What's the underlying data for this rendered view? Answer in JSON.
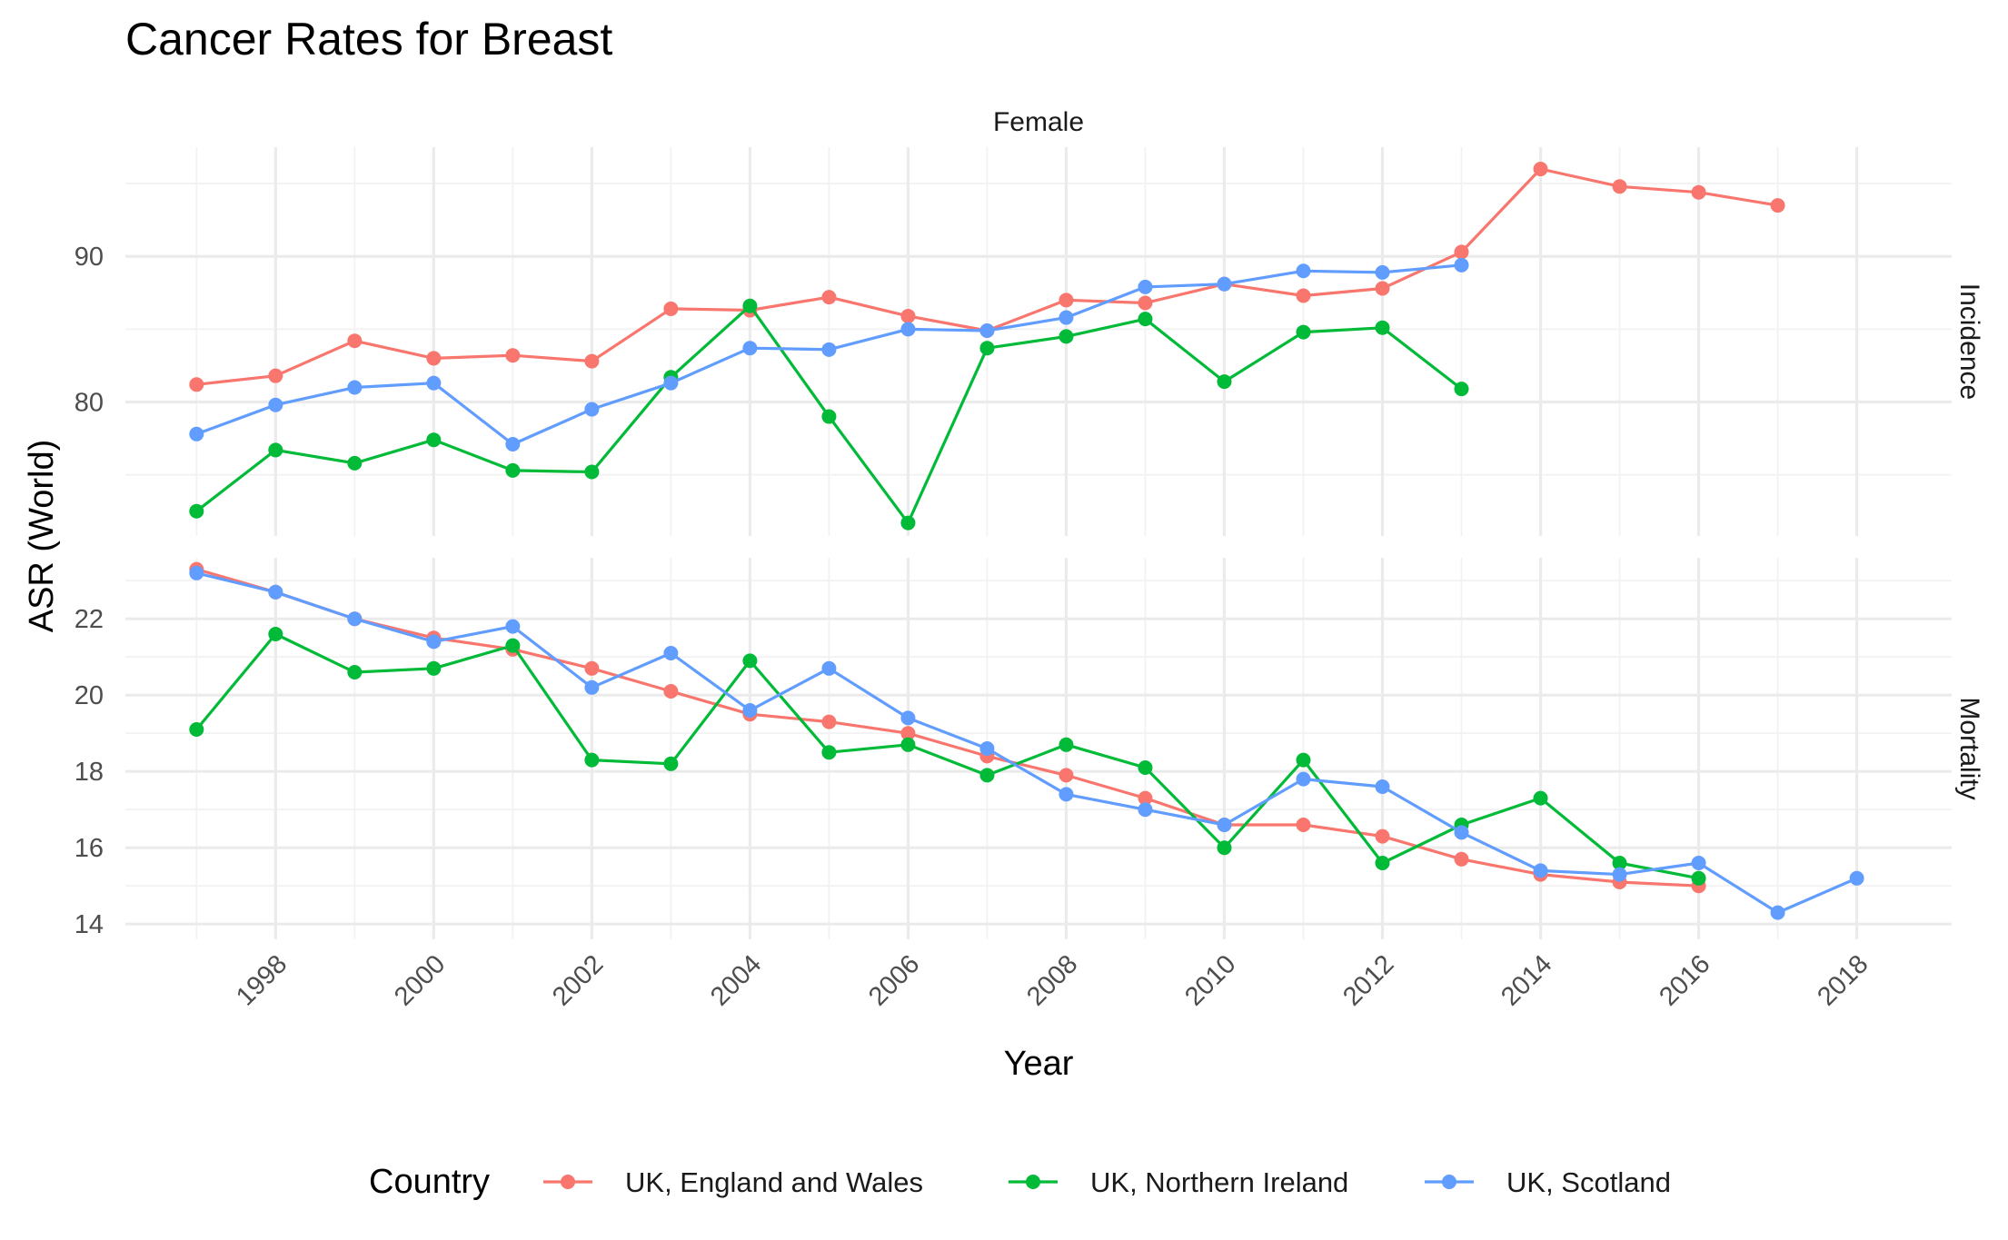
{
  "chart_data": {
    "type": "line",
    "title": "Cancer Rates for Breast",
    "facet_column": "Female",
    "xlabel": "Year",
    "ylabel": "ASR (World)",
    "legend_title": "Country",
    "legend_position": "bottom",
    "grid": true,
    "x_ticks": [
      1998,
      2000,
      2002,
      2004,
      2006,
      2008,
      2010,
      2012,
      2014,
      2016,
      2018
    ],
    "xlim": [
      1996.1,
      2019.2
    ],
    "series_colors": {
      "UK, England and Wales": "#F8766D",
      "UK, Northern Ireland": "#00BA38",
      "UK, Scotland": "#619CFF"
    },
    "panels": [
      {
        "label": "Incidence",
        "ylim": [
          70.8,
          97.5
        ],
        "y_ticks": [
          80,
          90
        ],
        "series": [
          {
            "name": "UK, England and Wales",
            "x": [
              1997,
              1998,
              1999,
              2000,
              2001,
              2002,
              2003,
              2004,
              2005,
              2006,
              2007,
              2008,
              2009,
              2010,
              2011,
              2012,
              2013,
              2014,
              2015,
              2016,
              2017
            ],
            "y": [
              81.2,
              81.8,
              84.2,
              83.0,
              83.2,
              82.8,
              86.4,
              86.3,
              87.2,
              85.9,
              84.9,
              87.0,
              86.8,
              88.1,
              87.3,
              87.8,
              90.3,
              96.0,
              94.8,
              94.4,
              93.5
            ]
          },
          {
            "name": "UK, Northern Ireland",
            "x": [
              1997,
              1998,
              1999,
              2000,
              2001,
              2002,
              2003,
              2004,
              2005,
              2006,
              2007,
              2008,
              2009,
              2010,
              2011,
              2012,
              2013
            ],
            "y": [
              72.5,
              76.7,
              75.8,
              77.4,
              75.3,
              75.2,
              81.7,
              86.6,
              79.0,
              71.7,
              83.7,
              84.5,
              85.7,
              81.4,
              84.8,
              85.1,
              80.9
            ]
          },
          {
            "name": "UK, Scotland",
            "x": [
              1997,
              1998,
              1999,
              2000,
              2001,
              2002,
              2003,
              2004,
              2005,
              2006,
              2007,
              2008,
              2009,
              2010,
              2011,
              2012,
              2013
            ],
            "y": [
              77.8,
              79.8,
              81.0,
              81.3,
              77.1,
              79.5,
              81.3,
              83.7,
              83.6,
              85.0,
              84.9,
              85.8,
              87.9,
              88.1,
              89.0,
              88.9,
              89.4
            ]
          }
        ]
      },
      {
        "label": "Mortality",
        "ylim": [
          13.6,
          23.6
        ],
        "y_ticks": [
          14,
          16,
          18,
          20,
          22
        ],
        "series": [
          {
            "name": "UK, England and Wales",
            "x": [
              1997,
              1998,
              1999,
              2000,
              2001,
              2002,
              2003,
              2004,
              2005,
              2006,
              2007,
              2008,
              2009,
              2010,
              2011,
              2012,
              2013,
              2014,
              2015,
              2016
            ],
            "y": [
              23.3,
              22.7,
              22.0,
              21.5,
              21.2,
              20.7,
              20.1,
              19.5,
              19.3,
              19.0,
              18.4,
              17.9,
              17.3,
              16.6,
              16.6,
              16.3,
              15.7,
              15.3,
              15.1,
              15.0
            ]
          },
          {
            "name": "UK, Northern Ireland",
            "x": [
              1997,
              1998,
              1999,
              2000,
              2001,
              2002,
              2003,
              2004,
              2005,
              2006,
              2007,
              2008,
              2009,
              2010,
              2011,
              2012,
              2013,
              2014,
              2015,
              2016
            ],
            "y": [
              19.1,
              21.6,
              20.6,
              20.7,
              21.3,
              18.3,
              18.2,
              20.9,
              18.5,
              18.7,
              17.9,
              18.7,
              18.1,
              16.0,
              18.3,
              15.6,
              16.6,
              17.3,
              15.6,
              15.2
            ]
          },
          {
            "name": "UK, Scotland",
            "x": [
              1997,
              1998,
              1999,
              2000,
              2001,
              2002,
              2003,
              2004,
              2005,
              2006,
              2007,
              2008,
              2009,
              2010,
              2011,
              2012,
              2013,
              2014,
              2015,
              2016,
              2017,
              2018
            ],
            "y": [
              23.2,
              22.7,
              22.0,
              21.4,
              21.8,
              20.2,
              21.1,
              19.6,
              20.7,
              19.4,
              18.6,
              17.4,
              17.0,
              16.6,
              17.8,
              17.6,
              16.4,
              15.4,
              15.3,
              15.6,
              14.3,
              15.2
            ]
          }
        ]
      }
    ]
  }
}
